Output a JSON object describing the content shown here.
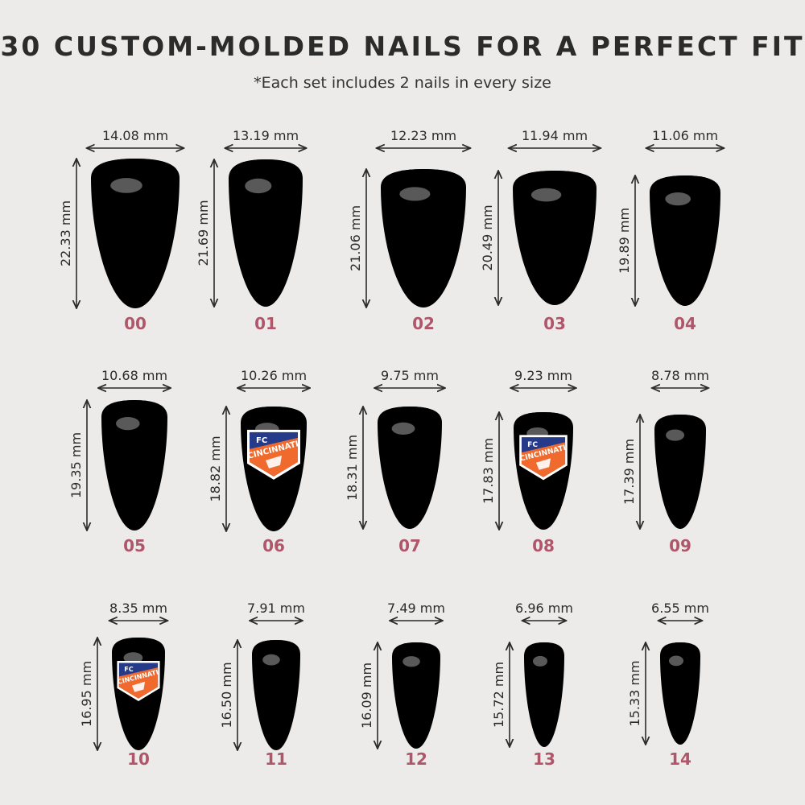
{
  "header": {
    "title": "30 CUSTOM-MOLDED NAILS FOR A PERFECT FIT",
    "subtitle": "*Each set includes 2 nails in every size"
  },
  "colors": {
    "background": "#ecebe9",
    "nail_body": "#f1d1ca",
    "nail_tip": "#1e2f8c",
    "size_label": "#b0566a",
    "logo_blue": "#263a8a",
    "logo_orange": "#ef6a2c"
  },
  "logo": {
    "line1": "FC",
    "line2": "CINCINNATI"
  },
  "nails": [
    {
      "size": "00",
      "width": "14.08 mm",
      "length": "22.33 mm",
      "logo": false
    },
    {
      "size": "01",
      "width": "13.19 mm",
      "length": "21.69 mm",
      "logo": false
    },
    {
      "size": "02",
      "width": "12.23 mm",
      "length": "21.06 mm",
      "logo": false
    },
    {
      "size": "03",
      "width": "11.94 mm",
      "length": "20.49 mm",
      "logo": false
    },
    {
      "size": "04",
      "width": "11.06 mm",
      "length": "19.89 mm",
      "logo": false
    },
    {
      "size": "05",
      "width": "10.68 mm",
      "length": "19.35 mm",
      "logo": false
    },
    {
      "size": "06",
      "width": "10.26 mm",
      "length": "18.82 mm",
      "logo": true
    },
    {
      "size": "07",
      "width": "9.75 mm",
      "length": "18.31 mm",
      "logo": false
    },
    {
      "size": "08",
      "width": "9.23 mm",
      "length": "17.83 mm",
      "logo": true
    },
    {
      "size": "09",
      "width": "8.78 mm",
      "length": "17.39 mm",
      "logo": false
    },
    {
      "size": "10",
      "width": "8.35 mm",
      "length": "16.95 mm",
      "logo": true
    },
    {
      "size": "11",
      "width": "7.91 mm",
      "length": "16.50 mm",
      "logo": false
    },
    {
      "size": "12",
      "width": "7.49 mm",
      "length": "16.09 mm",
      "logo": false
    },
    {
      "size": "13",
      "width": "6.96 mm",
      "length": "15.72 mm",
      "logo": false
    },
    {
      "size": "14",
      "width": "6.55 mm",
      "length": "15.33 mm",
      "logo": false
    }
  ]
}
